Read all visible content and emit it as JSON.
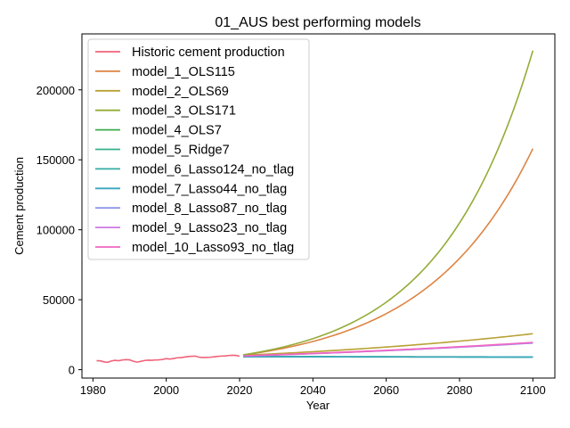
{
  "chart_data": {
    "type": "line",
    "title": "01_AUS best performing models",
    "xlabel": "Year",
    "ylabel": "Cement production",
    "xlim": [
      1977,
      2106
    ],
    "ylim": [
      -6000,
      240000
    ],
    "xticks": [
      1980,
      2000,
      2020,
      2040,
      2060,
      2080,
      2100
    ],
    "yticks": [
      0,
      50000,
      100000,
      150000,
      200000
    ],
    "grid": false,
    "legend_position": "top-left",
    "series": [
      {
        "name": "Historic cement production",
        "color": "#f0637a",
        "x": [
          1981,
          1982,
          1983,
          1984,
          1985,
          1986,
          1987,
          1988,
          1989,
          1990,
          1991,
          1992,
          1993,
          1994,
          1995,
          1996,
          1997,
          1998,
          1999,
          2000,
          2001,
          2002,
          2003,
          2004,
          2005,
          2006,
          2007,
          2008,
          2009,
          2010,
          2011,
          2012,
          2013,
          2014,
          2015,
          2016,
          2017,
          2018,
          2019,
          2020
        ],
        "y": [
          6500,
          6300,
          5600,
          5200,
          6200,
          6700,
          6400,
          6900,
          7200,
          7000,
          6000,
          5400,
          5900,
          6500,
          6800,
          6700,
          6900,
          7000,
          7300,
          7900,
          7600,
          8000,
          8500,
          8600,
          9000,
          9400,
          9600,
          9700,
          8900,
          8700,
          8800,
          8900,
          9200,
          9500,
          9700,
          9800,
          10100,
          10300,
          10200,
          9600
        ]
      },
      {
        "name": "model_1_OLS115",
        "color": "#dd8443",
        "model": "exp",
        "start": 10500,
        "end": 158000
      },
      {
        "name": "model_2_OLS69",
        "color": "#b8a133",
        "model": "exp",
        "start": 10300,
        "end": 25700
      },
      {
        "name": "model_3_OLS171",
        "color": "#93ac37",
        "model": "exp",
        "start": 10600,
        "end": 228000
      },
      {
        "name": "model_4_OLS7",
        "color": "#3dab4c",
        "model": "exp",
        "start": 9400,
        "end": 9100
      },
      {
        "name": "model_5_Ridge7",
        "color": "#35b08e",
        "model": "exp",
        "start": 9300,
        "end": 9000
      },
      {
        "name": "model_6_Lasso124_no_tlag",
        "color": "#36aca3",
        "model": "exp",
        "start": 9200,
        "end": 9000
      },
      {
        "name": "model_7_Lasso44_no_tlag",
        "color": "#39a7bd",
        "model": "exp",
        "start": 9200,
        "end": 9100
      },
      {
        "name": "model_8_Lasso87_no_tlag",
        "color": "#8f96e8",
        "model": "exp",
        "start": 9800,
        "end": 19000
      },
      {
        "name": "model_9_Lasso23_no_tlag",
        "color": "#cc79e2",
        "model": "exp",
        "start": 9700,
        "end": 19300
      },
      {
        "name": "model_10_Lasso93_no_tlag",
        "color": "#f065c2",
        "model": "exp",
        "start": 9900,
        "end": 19500
      }
    ],
    "forecast_x_range": [
      2021,
      2100
    ]
  }
}
